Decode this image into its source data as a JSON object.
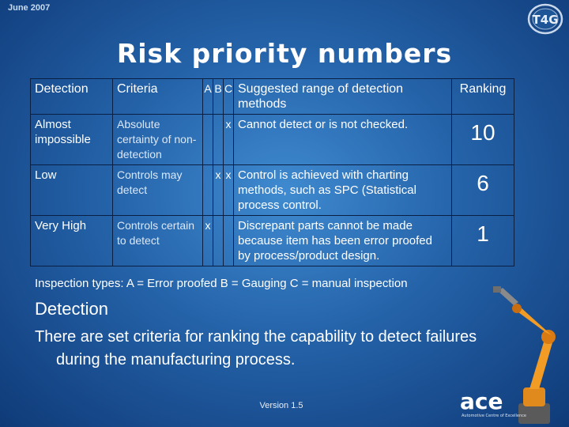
{
  "header": {
    "date": "June 2007",
    "title": "Risk priority numbers"
  },
  "table": {
    "columns": [
      "Detection",
      "Criteria",
      "A",
      "B",
      "C",
      "Suggested range of detection methods",
      "Ranking"
    ],
    "rows": [
      {
        "detection": "Almost impossible",
        "criteria": "Absolute certainty of non-detection",
        "a": "",
        "b": "",
        "c": "x",
        "range": "Cannot detect or is not checked.",
        "ranking": "10"
      },
      {
        "detection": "Low",
        "criteria": "Controls may detect",
        "a": "",
        "b": "x",
        "c": "x",
        "range": "Control is achieved with charting methods, such as SPC (Statistical process control.",
        "ranking": "6"
      },
      {
        "detection": "Very High",
        "criteria": "Controls certain to detect",
        "a": "x",
        "b": "",
        "c": "",
        "range": "Discrepant parts cannot be made because item has been error proofed by process/product design.",
        "ranking": "1"
      }
    ]
  },
  "inspection_types": "Inspection types:  A = Error proofed   B = Gauging   C = manual inspection",
  "body": {
    "heading": "Detection",
    "text": "There are set criteria for ranking the capability to detect failures during the manufacturing process."
  },
  "footer": {
    "version": "Version 1.5",
    "logo_text": "ace",
    "logo_subtext": "Automotive Centre of Excellence"
  },
  "icons": {
    "corner_logo": "t4g-logo-icon",
    "robot": "industrial-robot-icon",
    "brand_logo": "ace-logo-icon"
  },
  "colors": {
    "background": "#2462a8",
    "grid_lines": "#0a1f44",
    "text": "#ffffff"
  }
}
